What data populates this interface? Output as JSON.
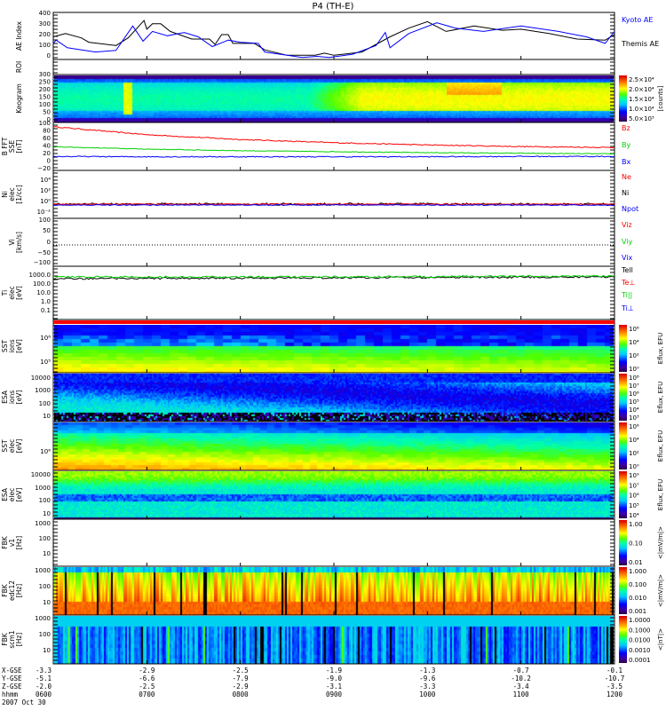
{
  "title": "P4 (TH-E)",
  "panels": {
    "ae": {
      "label": "AE Index",
      "ticks": [
        "400",
        "300",
        "200",
        "100",
        "0"
      ],
      "legend": [
        "Kyoto AE",
        "Themis AE"
      ]
    },
    "roi": {
      "label": "ROI"
    },
    "keogram": {
      "label": "Keogram",
      "ticks": [
        "300",
        "250",
        "200",
        "150",
        "100",
        "50",
        "0"
      ],
      "cbar": [
        "2.5×10⁴",
        "2.0×10⁴",
        "1.5×10⁴",
        "1.0×10⁴",
        "5.0×10³"
      ],
      "cbar_unit": "[counts]"
    },
    "bfft": {
      "label": "B FFT",
      "sub": "SSE",
      "unit": "[nT]",
      "ticks": [
        "100",
        "80",
        "60",
        "40",
        "20",
        "0",
        "−20"
      ],
      "legend": [
        "Bz",
        "By",
        "Bx"
      ]
    },
    "ni": {
      "label": "Ni",
      "sub": "elec",
      "unit": "[1/cc]",
      "ticks": [
        "10⁴",
        "10²",
        "10⁰",
        "10⁻²"
      ],
      "legend": [
        "Ne",
        "Ni",
        "Npot"
      ]
    },
    "vi": {
      "label": "Vi",
      "unit": "[km/s]",
      "ticks": [
        "100",
        "50",
        "0",
        "−50",
        "−100"
      ],
      "legend": [
        "Viz",
        "Viy",
        "Vix"
      ]
    },
    "ti": {
      "label": "Ti",
      "sub": "elec",
      "unit": "[eV]",
      "ticks": [
        "1000.0",
        "100.0",
        "10.0",
        "1.0",
        "0.1"
      ],
      "legend": [
        "Tell",
        "Te⊥",
        "Ti||",
        "Ti⊥"
      ]
    },
    "sst_i": {
      "label": "SST",
      "sub": "ions",
      "unit": "[eV]",
      "ticks": [
        "10⁶",
        "10⁵"
      ],
      "cbar": [
        "10⁶",
        "10⁴",
        "10²",
        "10⁰"
      ],
      "cbar_unit": "Eflux, EFU"
    },
    "esa_i": {
      "label": "ESA",
      "sub": "ions",
      "unit": "[eV]",
      "ticks": [
        "10000",
        "1000",
        "100",
        "10"
      ],
      "cbar": [
        "10⁸",
        "10⁷",
        "10⁶",
        "10⁵",
        "10⁴",
        "10³"
      ],
      "cbar_unit": "Eflux, EFU"
    },
    "sst_e": {
      "label": "SST",
      "sub": "elec",
      "unit": "[eV]",
      "ticks": [
        "10⁶"
      ],
      "cbar": [
        "10⁶",
        "10⁴",
        "10²",
        "10⁰"
      ],
      "cbar_unit": "Eflux, EFU"
    },
    "esa_e": {
      "label": "ESA",
      "sub": "elec",
      "unit": "[eV]",
      "ticks": [
        "10000",
        "1000",
        "100",
        "10"
      ],
      "cbar": [
        "10⁹",
        "10⁷",
        "10⁶",
        "10⁵",
        "10⁴"
      ],
      "cbar_unit": "Eflux, EFU"
    },
    "fbk_v1": {
      "label": "FBK",
      "sub": "v1",
      "unit": "[Hz]",
      "ticks": [
        "1000",
        "100",
        "10"
      ],
      "cbar": [
        "1.00",
        "0.10",
        "0.01"
      ],
      "cbar_unit": "<|mV/m|>"
    },
    "fbk_edc": {
      "label": "FBK",
      "sub": "edc12",
      "unit": "[Hz]",
      "ticks": [
        "1000",
        "100",
        "10"
      ],
      "cbar": [
        "1.000",
        "0.100",
        "0.010",
        "0.001"
      ],
      "cbar_unit": "<|mV/m|>"
    },
    "fbk_scm": {
      "label": "FBK",
      "sub": "scm1",
      "unit": "[Hz]",
      "ticks": [
        "1000",
        "100",
        "10"
      ],
      "cbar": [
        "1.0000",
        "0.1000",
        "0.0100",
        "0.0010",
        "0.0001"
      ],
      "cbar_unit": "<|nT|>"
    }
  },
  "footer": {
    "row_labels": [
      "X-GSE",
      "Y-GSE",
      "Z-GSE",
      "hhmm"
    ],
    "date": "2007 Oct 30",
    "hhmm": [
      "0600",
      "0700",
      "0800",
      "0900",
      "1000",
      "1100",
      "1200"
    ],
    "x_gse": [
      "-3.3",
      "-2.9",
      "-2.5",
      "-1.9",
      "-1.3",
      "-0.7",
      "-0.1"
    ],
    "y_gse": [
      "-5.1",
      "-6.6",
      "-7.9",
      "-9.0",
      "-9.6",
      "-10.2",
      "-10.7"
    ],
    "z_gse": [
      "-2.0",
      "-2.5",
      "-2.9",
      "-3.1",
      "-3.3",
      "-3.4",
      "-3.5"
    ]
  },
  "colors": {
    "kyoto": "#0000ff",
    "themis": "#000000",
    "red": "#ff0000",
    "green": "#00d000",
    "blue": "#0000ff"
  },
  "chart_data": {
    "type": "line",
    "title": "P4 (TH-E)",
    "xlabel": "hhmm",
    "x_unit": "hours after 0600 UT",
    "xlim": [
      0,
      6
    ],
    "ae_ylim": [
      0,
      400
    ],
    "series": [
      {
        "name": "Kyoto AE",
        "x": [
          0,
          0.03,
          0.15,
          0.45,
          0.67,
          0.85,
          0.96,
          1.06,
          1.22,
          1.4,
          1.55,
          1.7,
          1.87,
          2.0,
          2.19,
          2.26,
          2.5,
          2.66,
          2.82,
          2.95,
          3.2,
          3.45,
          3.55,
          3.6,
          3.8,
          4.1,
          4.3,
          4.6,
          5.0,
          5.4,
          5.7,
          5.9,
          6.0
        ],
        "y": [
          140,
          170,
          100,
          60,
          75,
          300,
          160,
          250,
          210,
          240,
          200,
          110,
          170,
          150,
          140,
          60,
          30,
          10,
          20,
          10,
          40,
          120,
          240,
          100,
          230,
          330,
          280,
          250,
          300,
          250,
          200,
          140,
          250
        ]
      },
      {
        "name": "Themis AE",
        "x": [
          0,
          0.13,
          0.3,
          0.38,
          0.67,
          0.8,
          0.97,
          1.0,
          1.06,
          1.15,
          1.25,
          1.48,
          1.67,
          1.73,
          1.8,
          1.87,
          1.92,
          2.15,
          2.26,
          2.5,
          2.8,
          2.9,
          3.0,
          3.3,
          3.6,
          3.8,
          4.0,
          4.2,
          4.5,
          4.8,
          5.0,
          5.3,
          5.6,
          5.9,
          6.0
        ],
        "y": [
          200,
          230,
          190,
          150,
          120,
          190,
          350,
          270,
          320,
          320,
          250,
          180,
          180,
          130,
          220,
          220,
          140,
          140,
          80,
          30,
          30,
          50,
          30,
          60,
          200,
          280,
          340,
          250,
          300,
          260,
          270,
          230,
          180,
          170,
          220
        ]
      },
      {
        "name": "Bz",
        "x": [
          0,
          1,
          2,
          3,
          4,
          5,
          6
        ],
        "y": [
          95,
          70,
          55,
          45,
          38,
          33,
          30
        ]
      },
      {
        "name": "By",
        "x": [
          0,
          1,
          2,
          3,
          4,
          5,
          6
        ],
        "y": [
          32,
          25,
          20,
          17,
          14,
          12,
          10
        ]
      },
      {
        "name": "Bx",
        "x": [
          0,
          1,
          2,
          3,
          4,
          5,
          6
        ],
        "y": [
          2,
          1,
          1,
          1,
          1,
          2,
          2
        ]
      }
    ]
  }
}
